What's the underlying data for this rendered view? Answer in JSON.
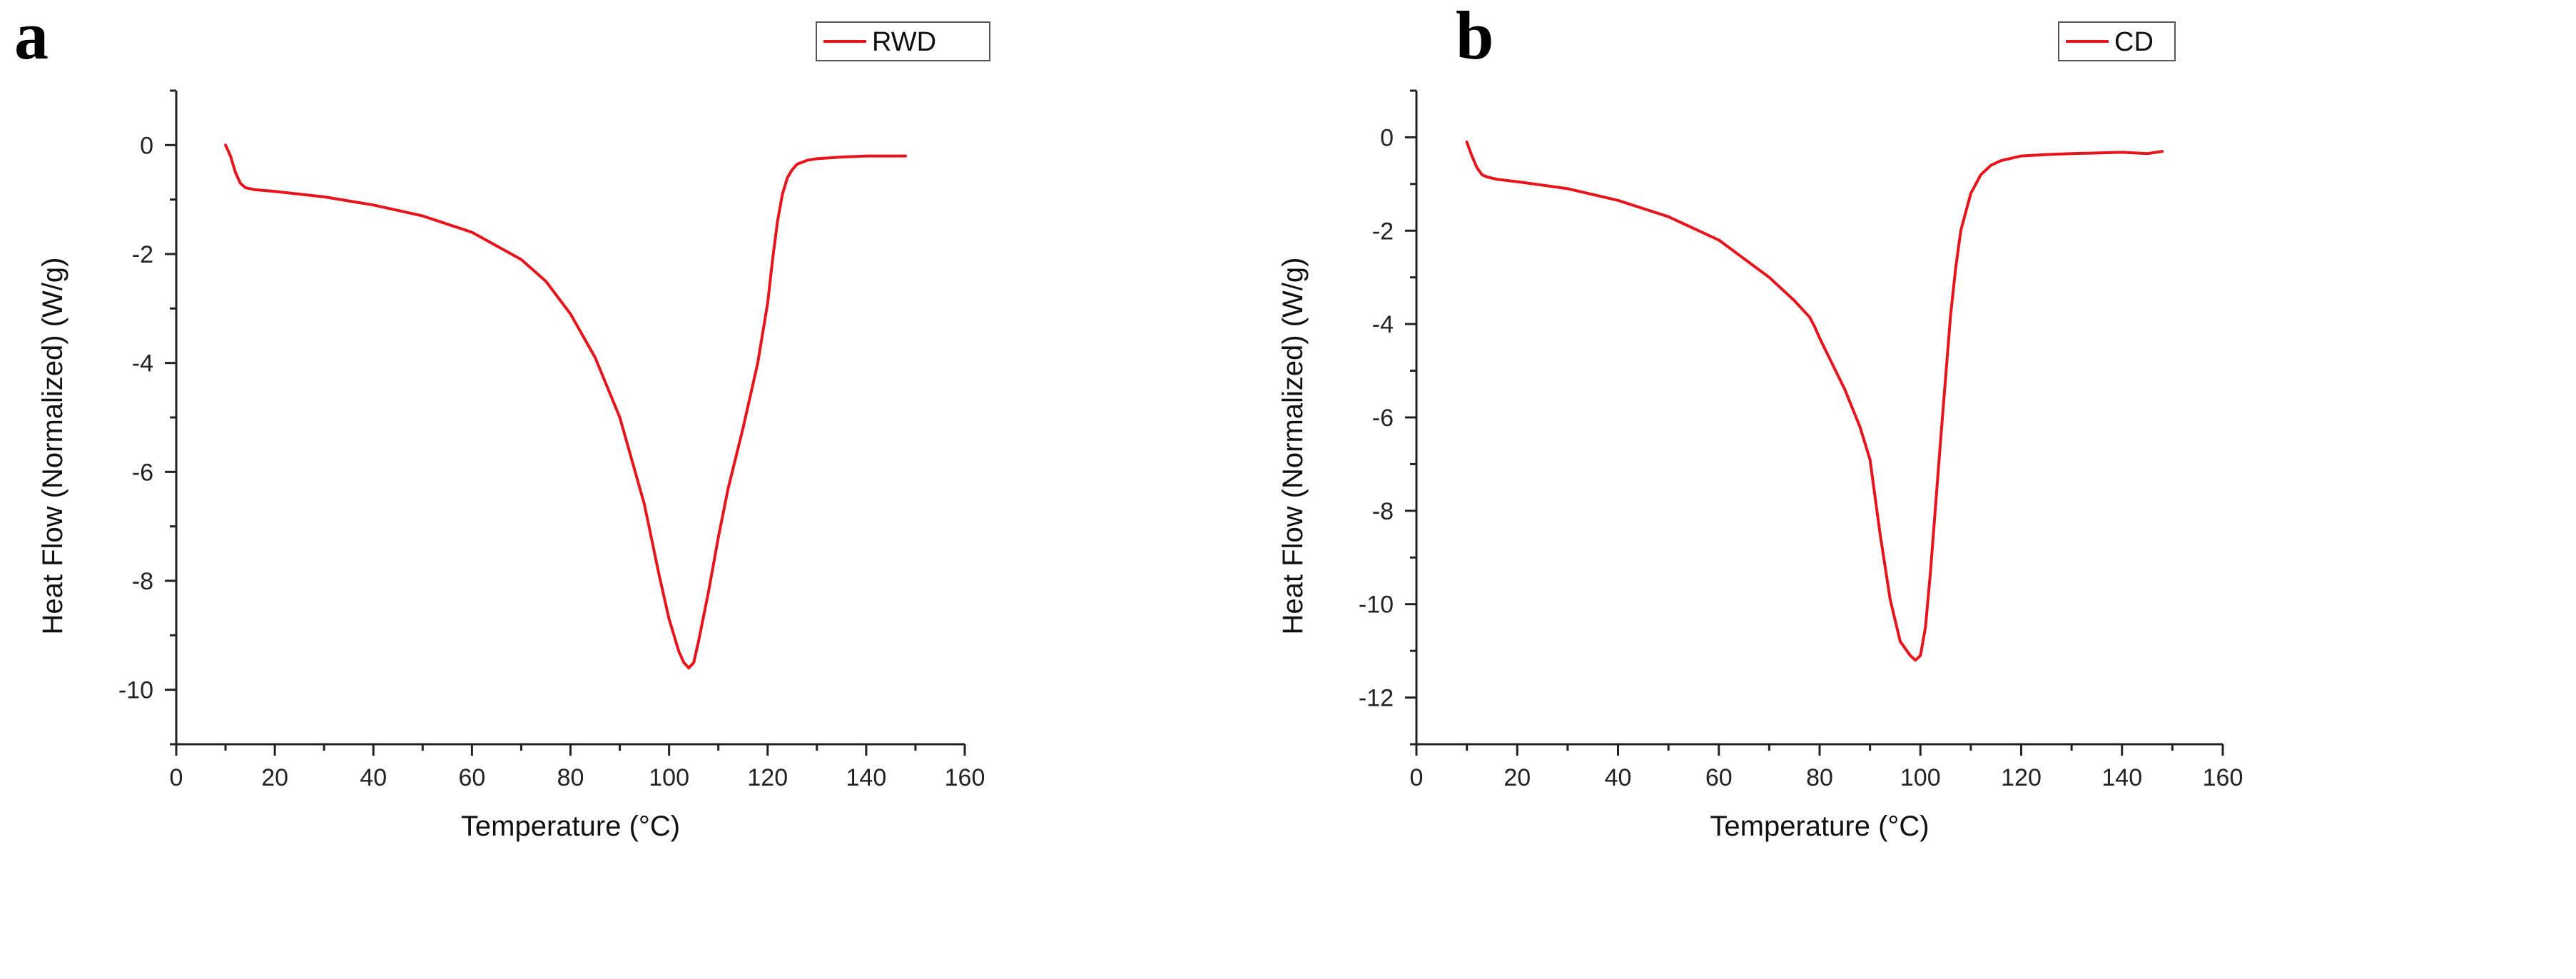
{
  "chart_data": [
    {
      "panel_label": "a",
      "type": "line",
      "title": "",
      "xlabel": "Temperature (°C)",
      "ylabel": "Heat Flow (Normalized) (W/g)",
      "xlim": [
        0,
        160
      ],
      "ylim": [
        -11,
        1
      ],
      "xticks": [
        0,
        20,
        40,
        60,
        80,
        100,
        120,
        140,
        160
      ],
      "yticks": [
        0,
        -2,
        -4,
        -6,
        -8,
        -10
      ],
      "grid": false,
      "legend_position": "top-right",
      "line_color": "#e8141c",
      "series": [
        {
          "name": "RWD",
          "x": [
            10,
            11,
            12,
            13,
            14,
            16,
            20,
            30,
            40,
            50,
            60,
            70,
            75,
            80,
            85,
            90,
            95,
            98,
            100,
            102,
            103,
            104,
            105,
            106,
            108,
            110,
            112,
            115,
            118,
            120,
            121,
            122,
            123,
            124,
            125,
            126,
            128,
            130,
            135,
            140,
            148
          ],
          "y": [
            0,
            -0.2,
            -0.5,
            -0.7,
            -0.78,
            -0.82,
            -0.85,
            -0.95,
            -1.1,
            -1.3,
            -1.6,
            -2.1,
            -2.5,
            -3.1,
            -3.9,
            -5.0,
            -6.6,
            -7.9,
            -8.7,
            -9.3,
            -9.5,
            -9.6,
            -9.5,
            -9.1,
            -8.2,
            -7.2,
            -6.3,
            -5.2,
            -4.0,
            -2.9,
            -2.1,
            -1.4,
            -0.9,
            -0.6,
            -0.45,
            -0.35,
            -0.28,
            -0.25,
            -0.22,
            -0.2,
            -0.2
          ]
        }
      ]
    },
    {
      "panel_label": "b",
      "type": "line",
      "title": "",
      "xlabel": "Temperature (°C)",
      "ylabel": "Heat Flow (Normalized) (W/g)",
      "xlim": [
        0,
        160
      ],
      "ylim": [
        -13,
        1
      ],
      "xticks": [
        0,
        20,
        40,
        60,
        80,
        100,
        120,
        140,
        160
      ],
      "yticks": [
        0,
        -2,
        -4,
        -6,
        -8,
        -10,
        -12
      ],
      "grid": false,
      "legend_position": "top-right",
      "line_color": "#e8141c",
      "series": [
        {
          "name": "CD",
          "x": [
            10,
            11,
            12,
            13,
            14,
            16,
            20,
            30,
            40,
            50,
            60,
            70,
            75,
            78,
            79,
            80,
            85,
            88,
            90,
            92,
            94,
            96,
            98,
            99,
            100,
            101,
            102,
            104,
            106,
            107,
            108,
            110,
            112,
            114,
            116,
            120,
            125,
            130,
            140,
            145,
            148
          ],
          "y": [
            -0.1,
            -0.4,
            -0.65,
            -0.8,
            -0.85,
            -0.9,
            -0.95,
            -1.1,
            -1.35,
            -1.7,
            -2.2,
            -3.0,
            -3.5,
            -3.85,
            -4.05,
            -4.3,
            -5.4,
            -6.2,
            -6.9,
            -8.5,
            -9.9,
            -10.8,
            -11.1,
            -11.2,
            -11.1,
            -10.5,
            -9.3,
            -6.5,
            -3.8,
            -2.8,
            -2.0,
            -1.2,
            -0.8,
            -0.6,
            -0.5,
            -0.4,
            -0.37,
            -0.35,
            -0.32,
            -0.35,
            -0.3
          ]
        }
      ]
    }
  ]
}
